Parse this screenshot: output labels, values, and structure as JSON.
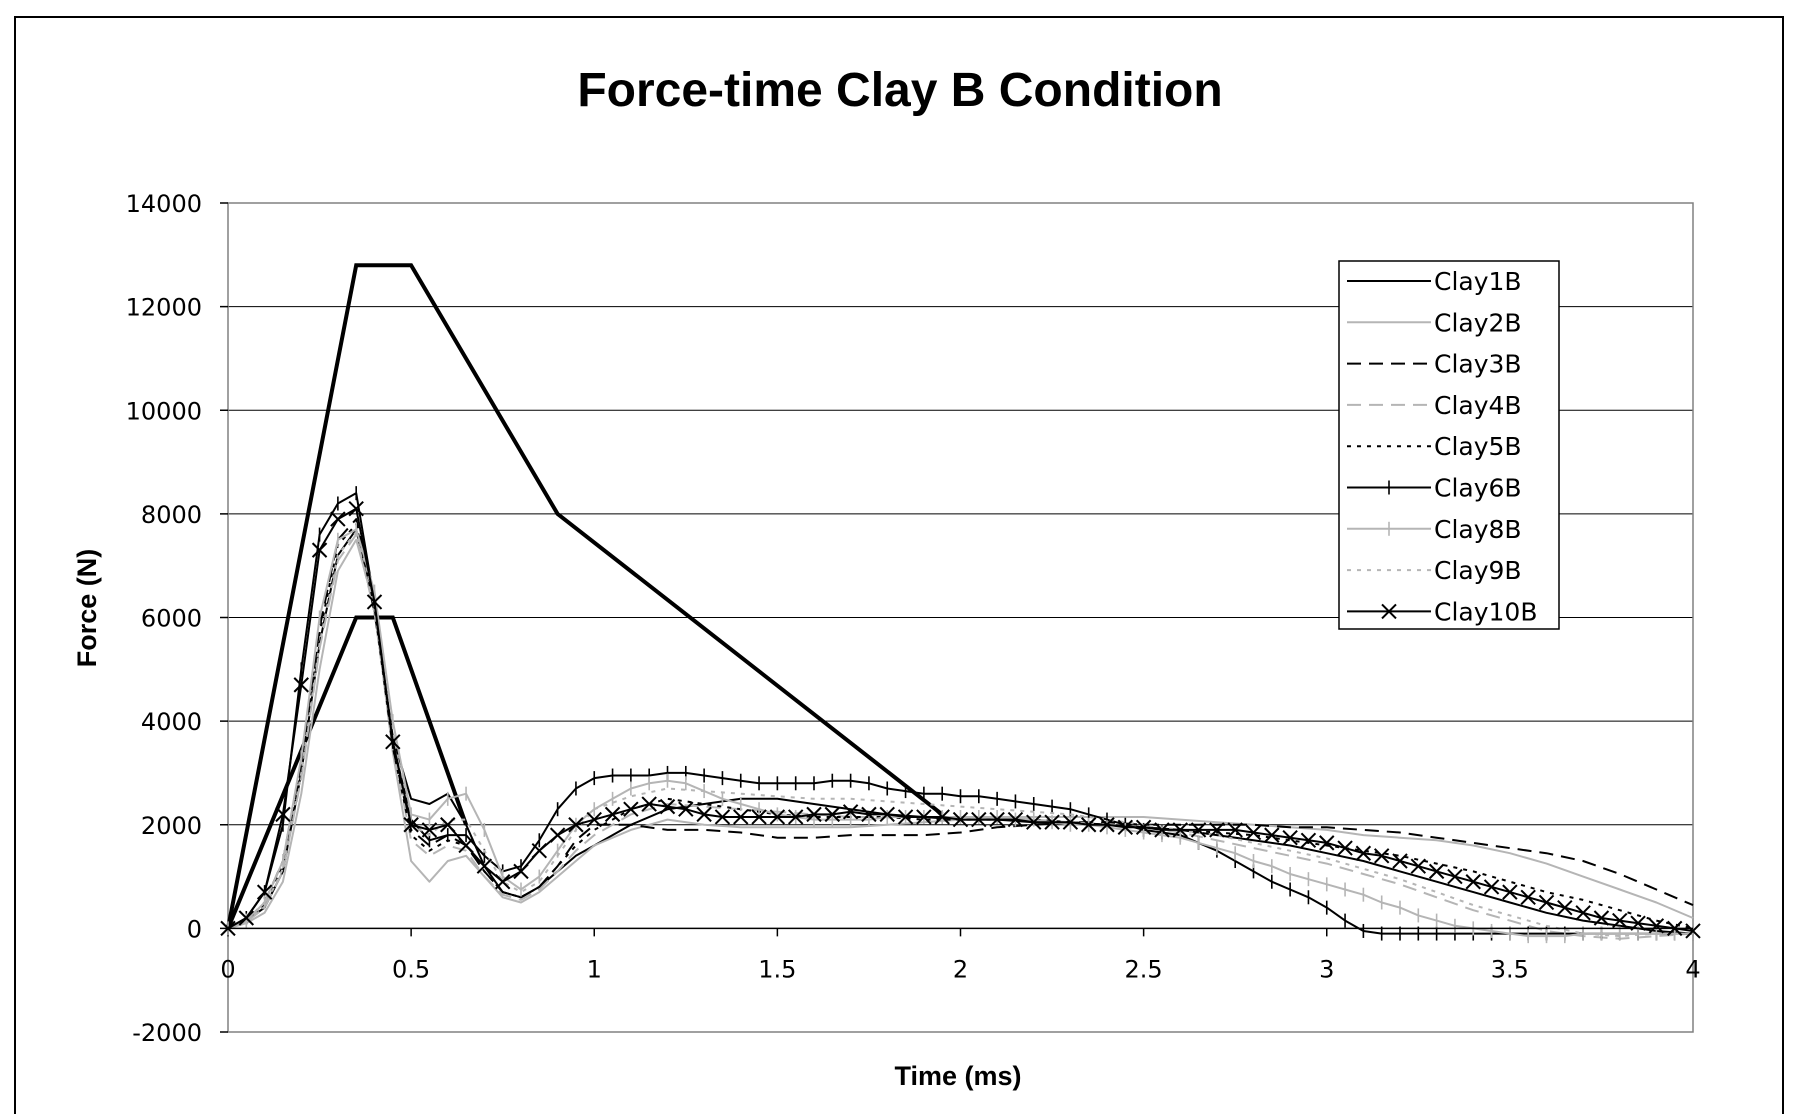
{
  "chart_data": {
    "type": "line",
    "title": "Force-time Clay B Condition",
    "xlabel": "Time (ms)",
    "ylabel": "Force (N)",
    "xlim": [
      0,
      4
    ],
    "ylim": [
      -2000,
      14000
    ],
    "x_ticks": [
      "0",
      "0.5",
      "1",
      "1.5",
      "2",
      "2.5",
      "3",
      "3.5",
      "4"
    ],
    "y_ticks": [
      "-2000",
      "0",
      "2000",
      "4000",
      "6000",
      "8000",
      "10000",
      "12000",
      "14000"
    ],
    "grid": "horizontal",
    "legend_position": "top-right",
    "series": [
      {
        "name": "Clay1B",
        "color": "#000000",
        "dash": "",
        "marker": "none",
        "x": [
          0,
          0.05,
          0.1,
          0.15,
          0.2,
          0.25,
          0.3,
          0.35,
          0.4,
          0.45,
          0.5,
          0.55,
          0.6,
          0.65,
          0.7,
          0.75,
          0.8,
          0.85,
          0.9,
          0.95,
          1,
          1.1,
          1.2,
          1.3,
          1.4,
          1.5,
          1.6,
          1.7,
          1.8,
          1.9,
          2,
          2.1,
          2.2,
          2.3,
          2.4,
          2.5,
          2.6,
          2.7,
          2.8,
          2.9,
          3,
          3.1,
          3.2,
          3.3,
          3.4,
          3.5,
          3.6,
          3.7,
          3.8,
          3.9,
          4
        ],
        "y": [
          0,
          150,
          400,
          1100,
          3000,
          5500,
          7200,
          7700,
          6100,
          3700,
          2500,
          2400,
          2600,
          2000,
          1200,
          700,
          600,
          800,
          1100,
          1400,
          1600,
          2000,
          2300,
          2400,
          2500,
          2500,
          2400,
          2300,
          2200,
          2150,
          2100,
          2100,
          2050,
          2050,
          2000,
          1950,
          1900,
          1800,
          1700,
          1600,
          1450,
          1300,
          1100,
          900,
          700,
          500,
          300,
          150,
          50,
          -50,
          -100
        ]
      },
      {
        "name": "Clay2B",
        "color": "#b5b5b5",
        "dash": "",
        "marker": "none",
        "x": [
          0,
          0.05,
          0.1,
          0.15,
          0.2,
          0.25,
          0.3,
          0.35,
          0.4,
          0.45,
          0.5,
          0.55,
          0.6,
          0.65,
          0.7,
          0.75,
          0.8,
          0.85,
          0.9,
          0.95,
          1,
          1.1,
          1.2,
          1.3,
          1.4,
          1.5,
          1.6,
          1.7,
          1.8,
          1.9,
          2,
          2.1,
          2.2,
          2.3,
          2.4,
          2.5,
          2.6,
          2.7,
          2.8,
          2.9,
          3,
          3.1,
          3.2,
          3.3,
          3.4,
          3.5,
          3.6,
          3.7,
          3.8,
          3.9,
          4
        ],
        "y": [
          0,
          100,
          300,
          900,
          2600,
          5000,
          6900,
          7500,
          6200,
          3400,
          1300,
          900,
          1300,
          1400,
          1000,
          600,
          500,
          700,
          1000,
          1300,
          1600,
          1900,
          2100,
          2000,
          1950,
          1950,
          1950,
          1950,
          2000,
          2050,
          2100,
          2150,
          2150,
          2150,
          2150,
          2150,
          2100,
          2050,
          2000,
          1950,
          1900,
          1800,
          1750,
          1700,
          1600,
          1450,
          1250,
          1000,
          750,
          500,
          200
        ]
      },
      {
        "name": "Clay3B",
        "color": "#000000",
        "dash": "14,8",
        "marker": "none",
        "x": [
          0,
          0.05,
          0.1,
          0.15,
          0.2,
          0.25,
          0.3,
          0.35,
          0.4,
          0.45,
          0.5,
          0.55,
          0.6,
          0.65,
          0.7,
          0.75,
          0.8,
          0.85,
          0.9,
          0.95,
          1,
          1.1,
          1.2,
          1.3,
          1.4,
          1.5,
          1.6,
          1.7,
          1.8,
          1.9,
          2,
          2.1,
          2.2,
          2.3,
          2.4,
          2.5,
          2.6,
          2.7,
          2.8,
          2.9,
          3,
          3.1,
          3.2,
          3.3,
          3.4,
          3.5,
          3.6,
          3.7,
          3.8,
          3.9,
          4
        ],
        "y": [
          0,
          150,
          500,
          1300,
          3200,
          5800,
          7500,
          7900,
          6300,
          3500,
          1900,
          1600,
          1800,
          1600,
          1100,
          700,
          600,
          800,
          1200,
          1700,
          2000,
          2000,
          1900,
          1900,
          1850,
          1750,
          1750,
          1800,
          1800,
          1800,
          1850,
          1950,
          2000,
          2050,
          2050,
          2000,
          2000,
          2000,
          2000,
          1950,
          1950,
          1900,
          1850,
          1750,
          1650,
          1550,
          1450,
          1300,
          1050,
          750,
          450
        ]
      },
      {
        "name": "Clay4B",
        "color": "#b5b5b5",
        "dash": "14,8",
        "marker": "none",
        "x": [
          0,
          0.05,
          0.1,
          0.15,
          0.2,
          0.25,
          0.3,
          0.35,
          0.4,
          0.45,
          0.5,
          0.55,
          0.6,
          0.65,
          0.7,
          0.75,
          0.8,
          0.85,
          0.9,
          0.95,
          1,
          1.1,
          1.2,
          1.3,
          1.4,
          1.5,
          1.6,
          1.7,
          1.8,
          1.9,
          2,
          2.1,
          2.2,
          2.3,
          2.4,
          2.5,
          2.6,
          2.7,
          2.8,
          2.9,
          3,
          3.1,
          3.2,
          3.3,
          3.4,
          3.5,
          3.6,
          3.7,
          3.8,
          3.9,
          4
        ],
        "y": [
          0,
          120,
          400,
          1100,
          2900,
          5400,
          7100,
          7600,
          6100,
          3500,
          1700,
          1400,
          1600,
          1500,
          1000,
          650,
          550,
          750,
          1100,
          1500,
          1800,
          2200,
          2400,
          2350,
          2300,
          2250,
          2200,
          2150,
          2150,
          2150,
          2150,
          2150,
          2100,
          2050,
          2000,
          1950,
          1850,
          1700,
          1550,
          1400,
          1250,
          1050,
          850,
          600,
          350,
          150,
          -50,
          -150,
          -200,
          -150,
          -100
        ]
      },
      {
        "name": "Clay5B",
        "color": "#000000",
        "dash": "4,6",
        "marker": "none",
        "x": [
          0,
          0.05,
          0.1,
          0.15,
          0.2,
          0.25,
          0.3,
          0.35,
          0.4,
          0.45,
          0.5,
          0.55,
          0.6,
          0.65,
          0.7,
          0.75,
          0.8,
          0.85,
          0.9,
          0.95,
          1,
          1.1,
          1.2,
          1.3,
          1.4,
          1.5,
          1.6,
          1.7,
          1.8,
          1.9,
          2,
          2.1,
          2.2,
          2.3,
          2.4,
          2.5,
          2.6,
          2.7,
          2.8,
          2.9,
          3,
          3.1,
          3.2,
          3.3,
          3.4,
          3.5,
          3.6,
          3.7,
          3.8,
          3.9,
          4
        ],
        "y": [
          0,
          150,
          450,
          1200,
          3100,
          5700,
          7400,
          7800,
          6200,
          3500,
          1800,
          1500,
          1700,
          1600,
          1100,
          700,
          600,
          800,
          1200,
          1600,
          1900,
          2300,
          2500,
          2400,
          2300,
          2200,
          2150,
          2150,
          2150,
          2100,
          2100,
          2100,
          2100,
          2050,
          2000,
          1950,
          1900,
          1850,
          1800,
          1700,
          1600,
          1500,
          1400,
          1250,
          1100,
          900,
          700,
          550,
          350,
          150,
          0
        ]
      },
      {
        "name": "Clay6B",
        "color": "#000000",
        "dash": "",
        "marker": "plus",
        "x": [
          0,
          0.05,
          0.1,
          0.15,
          0.2,
          0.25,
          0.3,
          0.35,
          0.4,
          0.45,
          0.5,
          0.55,
          0.6,
          0.65,
          0.7,
          0.75,
          0.8,
          0.85,
          0.9,
          0.95,
          1,
          1.05,
          1.1,
          1.15,
          1.2,
          1.25,
          1.3,
          1.35,
          1.4,
          1.45,
          1.5,
          1.55,
          1.6,
          1.65,
          1.7,
          1.75,
          1.8,
          1.85,
          1.9,
          1.95,
          2,
          2.05,
          2.1,
          2.15,
          2.2,
          2.25,
          2.3,
          2.35,
          2.4,
          2.45,
          2.5,
          2.55,
          2.6,
          2.65,
          2.7,
          2.75,
          2.8,
          2.85,
          2.9,
          2.95,
          3,
          3.05,
          3.1,
          3.15,
          3.2,
          3.25,
          3.3,
          3.35,
          3.4,
          3.45,
          3.5,
          3.55,
          3.6,
          3.65,
          3.7,
          3.75,
          3.8,
          3.85,
          3.9,
          3.95,
          4
        ],
        "y": [
          0,
          200,
          700,
          2000,
          5000,
          7600,
          8200,
          8400,
          6300,
          3600,
          2100,
          1700,
          1800,
          1800,
          1400,
          1100,
          1200,
          1700,
          2300,
          2700,
          2900,
          2950,
          2950,
          2950,
          3000,
          3000,
          2950,
          2900,
          2850,
          2800,
          2800,
          2800,
          2800,
          2850,
          2850,
          2800,
          2700,
          2650,
          2600,
          2600,
          2550,
          2550,
          2500,
          2450,
          2400,
          2350,
          2300,
          2200,
          2100,
          2000,
          1900,
          1850,
          1800,
          1650,
          1500,
          1300,
          1100,
          900,
          750,
          600,
          400,
          150,
          -50,
          -100,
          -100,
          -100,
          -100,
          -100,
          -100,
          -100,
          -100,
          -100,
          -100,
          -100,
          -100,
          -100,
          -100,
          -100,
          -100,
          -100,
          -100
        ]
      },
      {
        "name": "Clay8B",
        "color": "#b5b5b5",
        "dash": "",
        "marker": "plus",
        "x": [
          0,
          0.05,
          0.1,
          0.15,
          0.2,
          0.25,
          0.3,
          0.35,
          0.4,
          0.45,
          0.5,
          0.55,
          0.6,
          0.65,
          0.7,
          0.75,
          0.8,
          0.85,
          0.9,
          0.95,
          1,
          1.05,
          1.1,
          1.15,
          1.2,
          1.25,
          1.3,
          1.35,
          1.4,
          1.45,
          1.5,
          1.55,
          1.6,
          1.65,
          1.7,
          1.75,
          1.8,
          1.85,
          1.9,
          1.95,
          2,
          2.05,
          2.1,
          2.15,
          2.2,
          2.25,
          2.3,
          2.35,
          2.4,
          2.45,
          2.5,
          2.55,
          2.6,
          2.65,
          2.7,
          2.75,
          2.8,
          2.85,
          2.9,
          2.95,
          3,
          3.05,
          3.1,
          3.15,
          3.2,
          3.25,
          3.3,
          3.35,
          3.4,
          3.45,
          3.5,
          3.55,
          3.6,
          3.65,
          3.7,
          3.75,
          3.8,
          3.85,
          3.9,
          3.95,
          4
        ],
        "y": [
          0,
          150,
          500,
          1300,
          3300,
          6000,
          7500,
          7700,
          6500,
          4000,
          2200,
          2100,
          2500,
          2600,
          1900,
          1000,
          750,
          1000,
          1500,
          2000,
          2300,
          2500,
          2700,
          2800,
          2850,
          2800,
          2650,
          2500,
          2400,
          2300,
          2200,
          2150,
          2100,
          2100,
          2100,
          2100,
          2150,
          2150,
          2150,
          2150,
          2150,
          2150,
          2150,
          2100,
          2100,
          2050,
          2000,
          2000,
          1950,
          1900,
          1850,
          1800,
          1750,
          1650,
          1550,
          1450,
          1300,
          1200,
          1050,
          950,
          850,
          750,
          650,
          500,
          400,
          250,
          150,
          50,
          0,
          -50,
          -100,
          -150,
          -150,
          -150,
          -100,
          -100,
          -100,
          -100,
          -100,
          -100,
          -100
        ]
      },
      {
        "name": "Clay9B",
        "color": "#b5b5b5",
        "dash": "4,6",
        "marker": "none",
        "x": [
          0,
          0.05,
          0.1,
          0.15,
          0.2,
          0.25,
          0.3,
          0.35,
          0.4,
          0.45,
          0.5,
          0.55,
          0.6,
          0.65,
          0.7,
          0.75,
          0.8,
          0.85,
          0.9,
          0.95,
          1,
          1.1,
          1.2,
          1.3,
          1.4,
          1.5,
          1.6,
          1.7,
          1.8,
          1.9,
          2,
          2.1,
          2.2,
          2.3,
          2.4,
          2.5,
          2.6,
          2.7,
          2.8,
          2.9,
          3,
          3.1,
          3.2,
          3.3,
          3.4,
          3.5,
          3.6,
          3.7,
          3.8,
          3.9,
          4
        ],
        "y": [
          0,
          130,
          420,
          1150,
          3000,
          5500,
          7200,
          7650,
          6400,
          3800,
          2000,
          1800,
          2100,
          2100,
          1500,
          900,
          700,
          900,
          1400,
          1900,
          2300,
          2550,
          2700,
          2650,
          2600,
          2550,
          2500,
          2500,
          2450,
          2400,
          2350,
          2300,
          2250,
          2200,
          2100,
          2000,
          1900,
          1800,
          1650,
          1500,
          1350,
          1150,
          950,
          700,
          450,
          250,
          50,
          -100,
          -150,
          -100,
          -100
        ]
      },
      {
        "name": "Clay10B",
        "color": "#000000",
        "dash": "",
        "marker": "x",
        "x": [
          0,
          0.05,
          0.1,
          0.15,
          0.2,
          0.25,
          0.3,
          0.35,
          0.4,
          0.45,
          0.5,
          0.55,
          0.6,
          0.65,
          0.7,
          0.75,
          0.8,
          0.85,
          0.9,
          0.95,
          1,
          1.05,
          1.1,
          1.15,
          1.2,
          1.25,
          1.3,
          1.35,
          1.4,
          1.45,
          1.5,
          1.55,
          1.6,
          1.65,
          1.7,
          1.75,
          1.8,
          1.85,
          1.9,
          1.95,
          2,
          2.05,
          2.1,
          2.15,
          2.2,
          2.25,
          2.3,
          2.35,
          2.4,
          2.45,
          2.5,
          2.55,
          2.6,
          2.65,
          2.7,
          2.75,
          2.8,
          2.85,
          2.9,
          2.95,
          3,
          3.05,
          3.1,
          3.15,
          3.2,
          3.25,
          3.3,
          3.35,
          3.4,
          3.45,
          3.5,
          3.55,
          3.6,
          3.65,
          3.7,
          3.75,
          3.8,
          3.85,
          3.9,
          3.95,
          4
        ],
        "y": [
          0,
          200,
          700,
          2200,
          4700,
          7300,
          7900,
          8100,
          6300,
          3600,
          2000,
          1900,
          2000,
          1600,
          1200,
          900,
          1100,
          1500,
          1800,
          2000,
          2100,
          2200,
          2300,
          2400,
          2350,
          2300,
          2200,
          2150,
          2150,
          2150,
          2150,
          2150,
          2200,
          2200,
          2250,
          2200,
          2200,
          2150,
          2150,
          2150,
          2100,
          2100,
          2100,
          2100,
          2050,
          2050,
          2050,
          2000,
          2000,
          1950,
          1950,
          1900,
          1900,
          1900,
          1900,
          1900,
          1850,
          1800,
          1750,
          1700,
          1650,
          1550,
          1450,
          1400,
          1300,
          1200,
          1100,
          1000,
          900,
          800,
          700,
          600,
          500,
          400,
          300,
          200,
          150,
          100,
          50,
          0,
          -50
        ]
      }
    ],
    "shapes": [
      {
        "color": "#000000",
        "x": [
          0,
          0.35,
          0.5,
          0.9,
          1.95
        ],
        "y": [
          0,
          12800,
          12800,
          8000,
          2200
        ]
      },
      {
        "color": "#000000",
        "x": [
          0,
          0.35,
          0.45,
          0.65
        ],
        "y": [
          0,
          6000,
          6000,
          2000
        ]
      }
    ]
  }
}
